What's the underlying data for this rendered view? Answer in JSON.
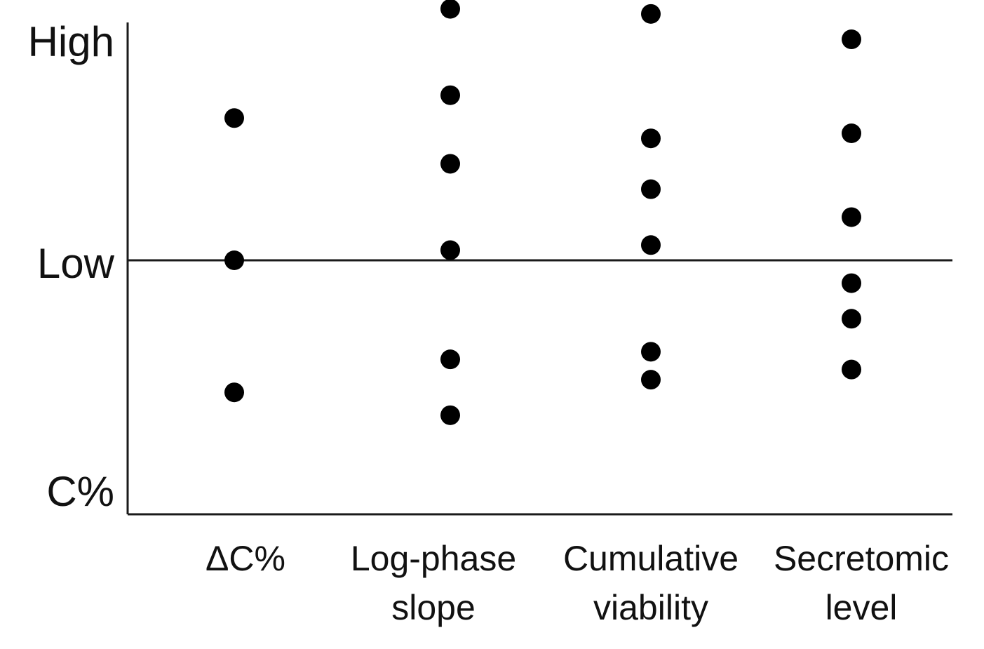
{
  "chart_data": {
    "type": "scatter",
    "title": "",
    "xlabel": "",
    "ylabel": "",
    "categories": [
      [
        "ΔC%"
      ],
      [
        "Log-phase",
        "slope"
      ],
      [
        "Cumulative",
        "viability"
      ],
      [
        "Secretomic",
        "level"
      ]
    ],
    "y_tick_labels": {
      "high": "High",
      "low": "Low",
      "bottom": "C%"
    },
    "y_scale": {
      "bottom_value": 0,
      "low_value": 1,
      "high_value": 2
    },
    "ylim": [
      0,
      2.1
    ],
    "reference_line_value": 1,
    "grid": false,
    "legend": "none",
    "series": [
      {
        "values": [
          [
            1.56,
            1.0,
            0.48
          ],
          [
            1.99,
            1.65,
            1.38,
            1.04,
            0.61,
            0.39
          ],
          [
            1.97,
            1.48,
            1.28,
            1.06,
            0.64,
            0.53
          ],
          [
            1.87,
            1.5,
            1.17,
            0.91,
            0.77,
            0.57
          ]
        ]
      }
    ]
  }
}
